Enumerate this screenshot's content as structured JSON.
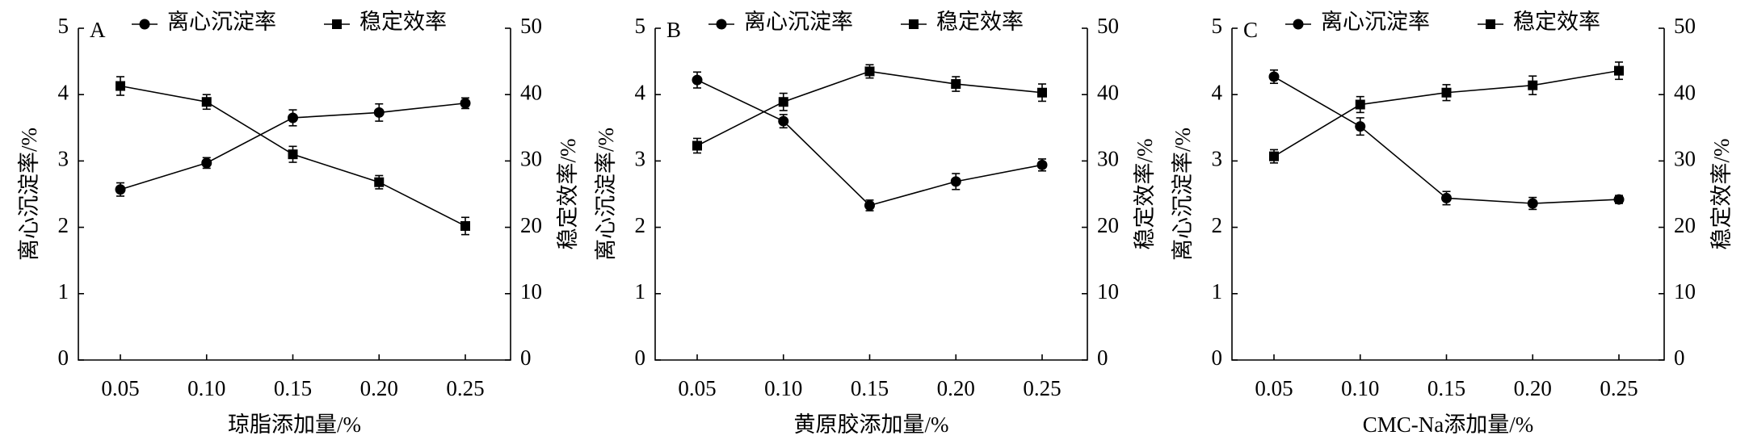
{
  "chart_data": [
    {
      "type": "line",
      "label": "A",
      "categories": [
        "0.05",
        "0.10",
        "0.15",
        "0.20",
        "0.25"
      ],
      "series": [
        {
          "name": "离心沉淀率",
          "marker": "circle",
          "color": "#000000",
          "values": [
            2.57,
            2.97,
            3.65,
            3.73,
            3.87
          ],
          "errors": [
            0.1,
            0.08,
            0.12,
            0.13,
            0.08
          ]
        },
        {
          "name": "稳定效率",
          "marker": "square",
          "color": "#000000",
          "axis": "y2",
          "values": [
            41.3,
            38.9,
            31.0,
            26.8,
            20.2
          ],
          "errors": [
            1.4,
            1.1,
            1.2,
            1.0,
            1.3
          ]
        }
      ],
      "ylim": [
        0,
        5
      ],
      "yticks": [
        0,
        1,
        2,
        3,
        4,
        5
      ],
      "y2lim": [
        0,
        50
      ],
      "y2ticks": [
        0,
        10,
        20,
        30,
        40,
        50
      ],
      "xlabel": "琼脂添加量/%",
      "ylabel": "离心沉淀率/%",
      "y2label": "稳定效率/%"
    },
    {
      "type": "line",
      "label": "B",
      "categories": [
        "0.05",
        "0.10",
        "0.15",
        "0.20",
        "0.25"
      ],
      "series": [
        {
          "name": "离心沉淀率",
          "marker": "circle",
          "color": "#000000",
          "values": [
            4.22,
            3.6,
            2.33,
            2.69,
            2.94
          ],
          "errors": [
            0.12,
            0.1,
            0.08,
            0.12,
            0.09
          ]
        },
        {
          "name": "稳定效率",
          "marker": "square",
          "color": "#000000",
          "axis": "y2",
          "values": [
            32.3,
            38.9,
            43.5,
            41.6,
            40.3
          ],
          "errors": [
            1.1,
            1.3,
            1.0,
            1.1,
            1.3
          ]
        }
      ],
      "ylim": [
        0,
        5
      ],
      "yticks": [
        0,
        1,
        2,
        3,
        4,
        5
      ],
      "y2lim": [
        0,
        50
      ],
      "y2ticks": [
        0,
        10,
        20,
        30,
        40,
        50
      ],
      "xlabel": "黄原胶添加量/%",
      "ylabel": "离心沉淀率/%",
      "y2label": "稳定效率/%"
    },
    {
      "type": "line",
      "label": "C",
      "categories": [
        "0.05",
        "0.10",
        "0.15",
        "0.20",
        "0.25"
      ],
      "series": [
        {
          "name": "离心沉淀率",
          "marker": "circle",
          "color": "#000000",
          "values": [
            4.27,
            3.52,
            2.44,
            2.36,
            2.42
          ],
          "errors": [
            0.1,
            0.13,
            0.1,
            0.09,
            0.06
          ]
        },
        {
          "name": "稳定效率",
          "marker": "square",
          "color": "#000000",
          "axis": "y2",
          "values": [
            30.7,
            38.5,
            40.3,
            41.4,
            43.6
          ],
          "errors": [
            1.0,
            1.2,
            1.2,
            1.4,
            1.3
          ]
        }
      ],
      "ylim": [
        0,
        5
      ],
      "yticks": [
        0,
        1,
        2,
        3,
        4,
        5
      ],
      "y2lim": [
        0,
        50
      ],
      "y2ticks": [
        0,
        10,
        20,
        30,
        40,
        50
      ],
      "xlabel": "CMC-Na添加量/%",
      "ylabel": "离心沉淀率/%",
      "y2label": "稳定效率/%"
    }
  ]
}
